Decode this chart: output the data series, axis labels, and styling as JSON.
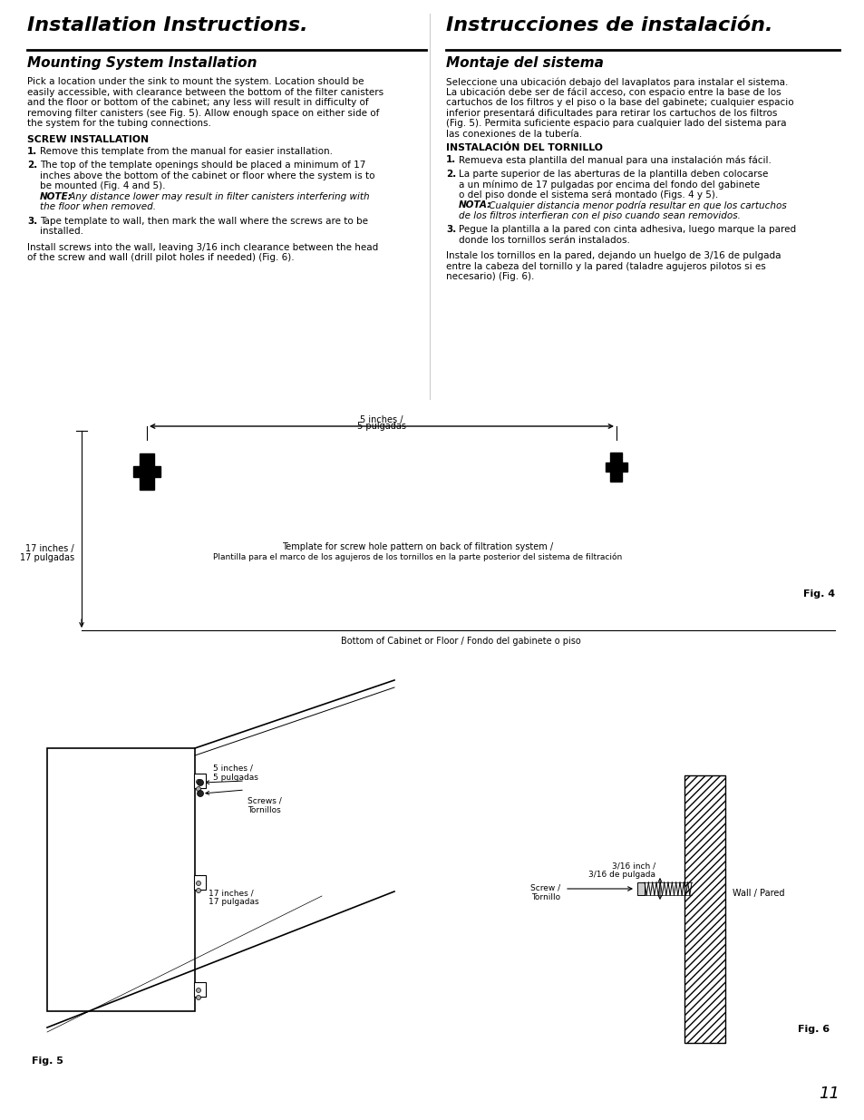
{
  "page_bg": "#ffffff",
  "left_title": "Installation Instructions.",
  "right_title": "Instrucciones de instalación.",
  "left_subtitle": "Mounting System Installation",
  "right_subtitle": "Montaje del sistema",
  "left_body1": "Pick a location under the sink to mount the system. Location should be",
  "left_body2": "easily accessible, with clearance between the bottom of the filter canisters",
  "left_body3": "and the floor or bottom of the cabinet; any less will result in difficulty of",
  "left_body4": "removing filter canisters (see Fig. 5). Allow enough space on either side of",
  "left_body5": "the system for the tubing connections.",
  "right_body1": "Seleccione una ubicación debajo del lavaplatos para instalar el sistema.",
  "right_body2": "La ubicación debe ser de fácil acceso, con espacio entre la base de los",
  "right_body3": "cartuchos de los filtros y el piso o la base del gabinete; cualquier espacio",
  "right_body4": "inferior presentará dificultades para retirar los cartuchos de los filtros",
  "right_body5": "(Fig. 5). Permita suficiente espacio para cualquier lado del sistema para",
  "right_body6": "las conexiones de la tubería.",
  "left_section": "SCREW INSTALLATION",
  "right_section": "INSTALACIÓN DEL TORNILLO",
  "left_item1": "Remove this template from the manual for easier installation.",
  "left_item2a": "The top of the template openings should be placed a minimum of 17",
  "left_item2b": "inches above the bottom of the cabinet or floor where the system is to",
  "left_item2c": "be mounted (Fig. 4 and 5).",
  "left_item2d": "NOTE: Any distance lower may result in filter canisters interfering with",
  "left_item2d_note": "NOTE:",
  "left_item2d_rest": " Any distance lower may result in filter canisters interfering with",
  "left_item2e": "the floor when removed.",
  "left_item3a": "Tape template to wall, then mark the wall where the screws are to be",
  "left_item3b": "installed.",
  "left_footer1": "Install screws into the wall, leaving 3/16 inch clearance between the head",
  "left_footer2": "of the screw and wall (drill pilot holes if needed) (Fig. 6).",
  "right_item1": "Remueva esta plantilla del manual para una instalación más fácil.",
  "right_item2a": "La parte superior de las aberturas de la plantilla deben colocarse",
  "right_item2b": "a un mínimo de 17 pulgadas por encima del fondo del gabinete",
  "right_item2c": "o del piso donde el sistema será montado (Figs. 4 y 5).",
  "right_item2d_note": "NOTA:",
  "right_item2d_rest": " Cualquier distancia menor podría resultar en que los cartuchos",
  "right_item2e": "de los filtros interfieran con el piso cuando sean removidos.",
  "right_item3a": "Pegue la plantilla a la pared con cinta adhesiva, luego marque la pared",
  "right_item3b": "donde los tornillos serán instalados.",
  "right_footer1": "Instale los tornillos en la pared, dejando un huelgo de 3/16 de pulgada",
  "right_footer2": "entre la cabeza del tornillo y la pared (taladre agujeros pilotos si es",
  "right_footer3": "necesario) (Fig. 6).",
  "fig4_label": "Fig. 4",
  "fig5_label": "Fig. 5",
  "fig6_label": "Fig. 6",
  "page_number": "11",
  "dim_5inch_l1": "5 inches /",
  "dim_5inch_l2": "5 pulgadas",
  "dim_17inch_l1": "17 inches /",
  "dim_17inch_l2": "17 pulgadas",
  "template_cap1": "Template for screw hole pattern on back of filtration system /",
  "template_cap2": "Plantilla para el marco de los agujeros de los tornillos en la parte posterior del sistema de filtración",
  "bottom_caption": "Bottom of Cabinet or Floor / Fondo del gabinete o piso",
  "dim_5inch_fig5_l1": "5 inches /",
  "dim_5inch_fig5_l2": "5 pulgadas",
  "dim_17inch_fig5_l1": "17 inches /",
  "dim_17inch_fig5_l2": "17 pulgadas",
  "screws_l1": "Screws /",
  "screws_l2": "Tornillos",
  "dim_316_l1": "3/16 inch /",
  "dim_316_l2": "3/16 de pulgada",
  "screw_l1": "Screw /",
  "screw_l2": "Tornillo",
  "wall_label": "Wall / Pared"
}
